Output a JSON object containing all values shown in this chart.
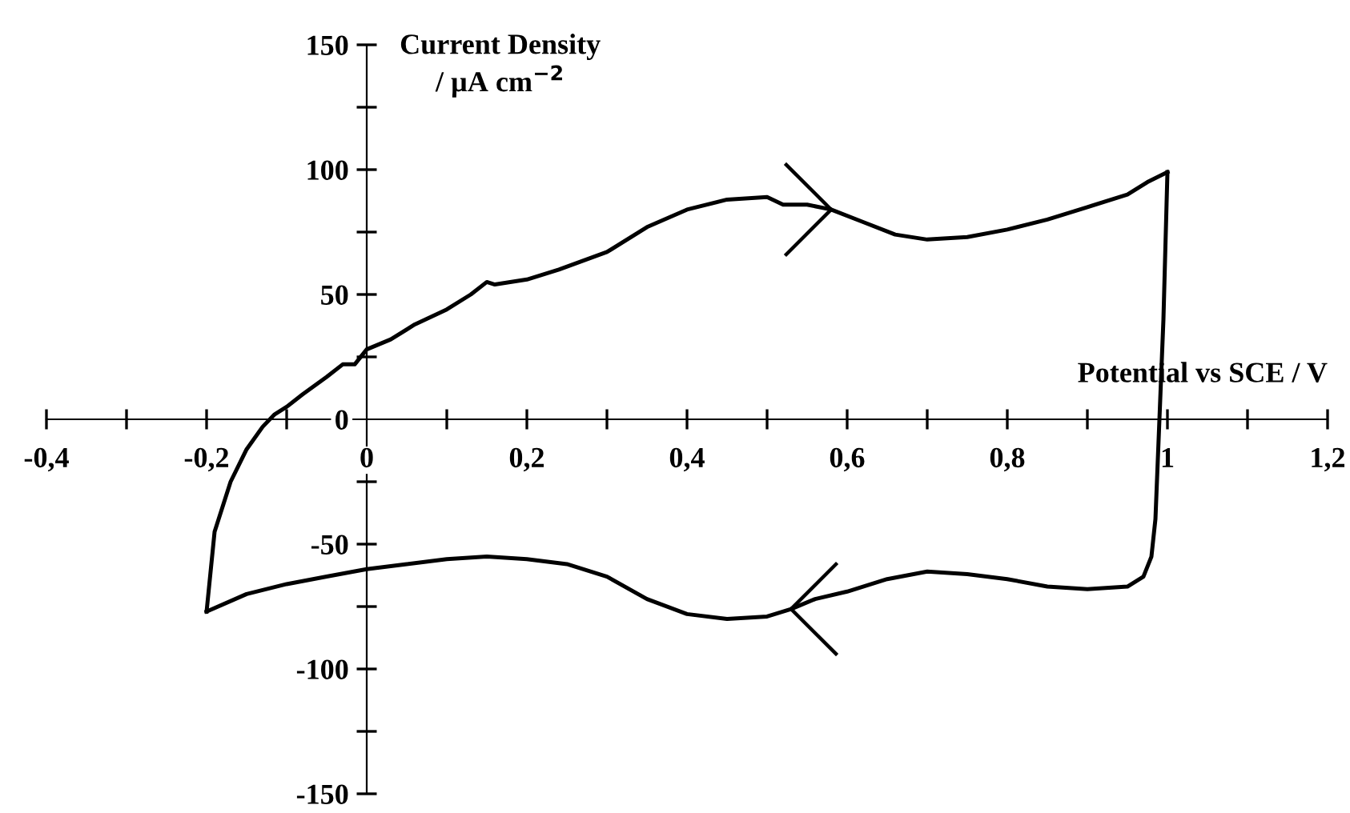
{
  "chart_data": {
    "type": "line",
    "xlabel": "Potential vs SCE / V",
    "ylabel": "Current Density\n/ µA cm$^{−2}$",
    "series": [
      {
        "color": "#000000",
        "x": [
          -0.2,
          -0.19,
          -0.17,
          -0.15,
          -0.13,
          -0.115,
          -0.1,
          -0.08,
          -0.05,
          -0.03,
          -0.015,
          0,
          0.03,
          0.06,
          0.1,
          0.13,
          0.15,
          0.16,
          0.2,
          0.24,
          0.3,
          0.35,
          0.4,
          0.45,
          0.5,
          0.52,
          0.55,
          0.58,
          0.62,
          0.66,
          0.7,
          0.75,
          0.8,
          0.85,
          0.9,
          0.95,
          0.975,
          1.0
        ],
        "values": [
          -77,
          -45,
          -25,
          -12,
          -3,
          2,
          5,
          10,
          17,
          22,
          22,
          28,
          32,
          38,
          44,
          50,
          55,
          54,
          56,
          60,
          67,
          77,
          84,
          88,
          89,
          86,
          86,
          84,
          79,
          74,
          72,
          73,
          76,
          80,
          85,
          90,
          95,
          99
        ]
      },
      {
        "color": "#000000",
        "x": [
          -0.2,
          -0.15,
          -0.1,
          -0.05,
          0,
          0.05,
          0.1,
          0.15,
          0.2,
          0.25,
          0.3,
          0.35,
          0.4,
          0.45,
          0.5,
          0.53,
          0.56,
          0.6,
          0.65,
          0.7,
          0.75,
          0.8,
          0.85,
          0.9,
          0.95,
          0.97,
          0.98,
          0.985,
          0.99,
          0.995,
          1.0
        ],
        "values": [
          -77,
          -70,
          -66,
          -63,
          -60,
          -58,
          -56,
          -55,
          -56,
          -58,
          -63,
          -72,
          -78,
          -80,
          -79,
          -76,
          -72,
          -69,
          -64,
          -61,
          -62,
          -64,
          -67,
          -68,
          -67,
          -63,
          -55,
          -40,
          0,
          40,
          99
        ]
      }
    ],
    "xlim": [
      -0.4,
      1.2
    ],
    "ylim": [
      -150,
      150
    ],
    "xticks": [
      {
        "value": -0.4,
        "label": "-0,4"
      },
      {
        "value": -0.3,
        "label": null
      },
      {
        "value": -0.2,
        "label": "-0,2"
      },
      {
        "value": -0.1,
        "label": null
      },
      0,
      {
        "value": 0.1,
        "label": null
      },
      {
        "value": 0.2,
        "label": "0,2"
      },
      {
        "value": 0.3,
        "label": null
      },
      {
        "value": 0.4,
        "label": "0,4"
      },
      {
        "value": 0.5,
        "label": null
      },
      {
        "value": 0.6,
        "label": "0,6"
      },
      {
        "value": 0.7,
        "label": null
      },
      {
        "value": 0.8,
        "label": "0,8"
      },
      {
        "value": 0.9,
        "label": null
      },
      1,
      {
        "value": 1.1,
        "label": null
      },
      {
        "value": 1.2,
        "label": "1,2"
      }
    ],
    "yticks": [
      -150,
      {
        "value": -125,
        "label": null
      },
      -100,
      {
        "value": -75,
        "label": null
      },
      -50,
      {
        "value": -25,
        "label": null
      },
      0,
      {
        "value": 25,
        "label": null
      },
      50,
      {
        "value": 75,
        "label": null
      },
      100,
      {
        "value": 125,
        "label": null
      },
      150
    ],
    "grid": false,
    "line_style": "solid"
  }
}
